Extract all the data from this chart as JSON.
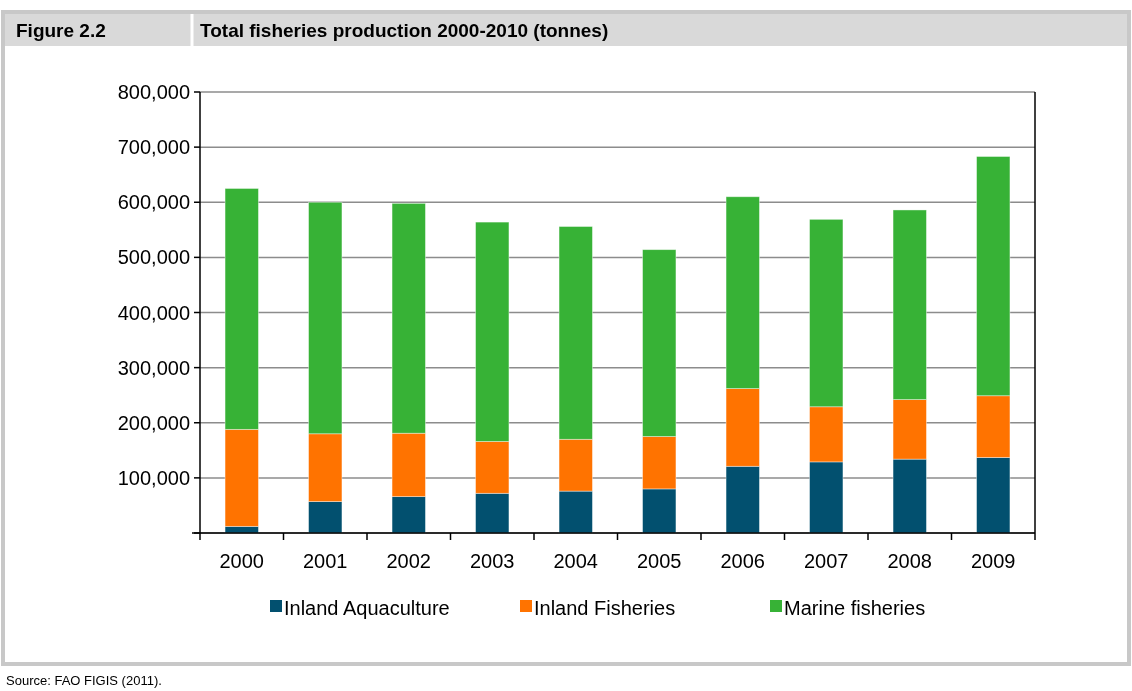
{
  "chart_data": {
    "type": "bar",
    "title": "Total fisheries production 2000-2010 (tonnes)",
    "annotations": [
      "Figure 2.2",
      "Source: FAO FIGIS (2011)."
    ],
    "categories": [
      "2000",
      "2001",
      "2002",
      "2003",
      "2004",
      "2005",
      "2006",
      "2007",
      "2008",
      "2009"
    ],
    "stacked": true,
    "series": [
      {
        "name": "Inland Aquaculture",
        "color": "#02506f",
        "values": [
          12000,
          57000,
          66000,
          72000,
          76000,
          80000,
          121000,
          129000,
          134000,
          137000
        ]
      },
      {
        "name": "Inland Fisheries",
        "color": "#ff7300",
        "values": [
          176000,
          123000,
          115000,
          94000,
          94000,
          95000,
          141000,
          100000,
          108000,
          112000
        ]
      },
      {
        "name": "Marine fisheries",
        "color": "#37b236",
        "values": [
          437000,
          420000,
          417000,
          398000,
          386000,
          339000,
          348000,
          340000,
          344000,
          434000
        ]
      }
    ],
    "ylim": [
      0,
      800000
    ],
    "yticks": [
      {
        "value": 0,
        "label": null
      },
      {
        "value": 100000,
        "label": "100,000"
      },
      {
        "value": 200000,
        "label": "200,000"
      },
      {
        "value": 300000,
        "label": "300,000"
      },
      {
        "value": 400000,
        "label": "400,000"
      },
      {
        "value": 500000,
        "label": "500,000"
      },
      {
        "value": 600000,
        "label": "600,000"
      },
      {
        "value": 700000,
        "label": "700,000"
      },
      {
        "value": 800000,
        "label": "800,000"
      }
    ],
    "grid": "y",
    "legend": "bottom"
  }
}
